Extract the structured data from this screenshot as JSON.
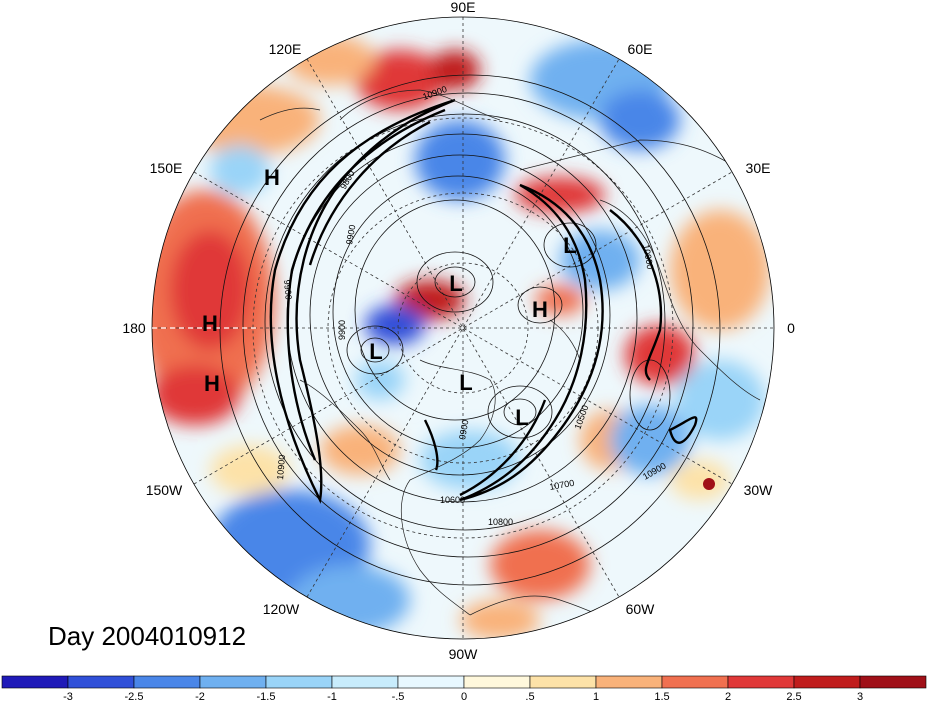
{
  "title": "Day 2004010912",
  "longitude_labels": [
    {
      "text": "90E",
      "lon": 90
    },
    {
      "text": "60E",
      "lon": 60
    },
    {
      "text": "30E",
      "lon": 30
    },
    {
      "text": "0",
      "lon": 0
    },
    {
      "text": "30W",
      "lon": -30
    },
    {
      "text": "60W",
      "lon": -60
    },
    {
      "text": "90W",
      "lon": -90
    },
    {
      "text": "120W",
      "lon": -120
    },
    {
      "text": "150W",
      "lon": -150
    },
    {
      "text": "180",
      "lon": 180
    },
    {
      "text": "150E",
      "lon": 150
    },
    {
      "text": "120E",
      "lon": 120
    }
  ],
  "pressure_systems": [
    {
      "type": "H",
      "label": "H"
    },
    {
      "type": "H",
      "label": "H"
    },
    {
      "type": "H",
      "label": "H"
    },
    {
      "type": "L",
      "label": "L"
    },
    {
      "type": "L",
      "label": "L"
    },
    {
      "type": "H",
      "label": "H"
    },
    {
      "type": "L",
      "label": "L"
    },
    {
      "type": "L",
      "label": "L"
    },
    {
      "type": "L",
      "label": "L"
    }
  ],
  "contour_labels": [
    "10900",
    "9800",
    "9900",
    "9900",
    "10900",
    "10700",
    "10600",
    "10500",
    "10900",
    "10800",
    "10900",
    "9900",
    "9900"
  ],
  "colorbar": {
    "tick_labels": [
      "-3",
      "-2.5",
      "-2",
      "-1.5",
      "-1",
      "-.5",
      "0",
      ".5",
      "1",
      "1.5",
      "2",
      "2.5",
      "3"
    ],
    "colors": [
      "#1f1ab8",
      "#3050d8",
      "#4a86e8",
      "#6fb0f0",
      "#9ad4f8",
      "#c8ecfc",
      "#e8f8ff",
      "#fff8dc",
      "#fde2a8",
      "#f9b27a",
      "#f07050",
      "#e03838",
      "#c01c1c",
      "#a01018"
    ]
  }
}
